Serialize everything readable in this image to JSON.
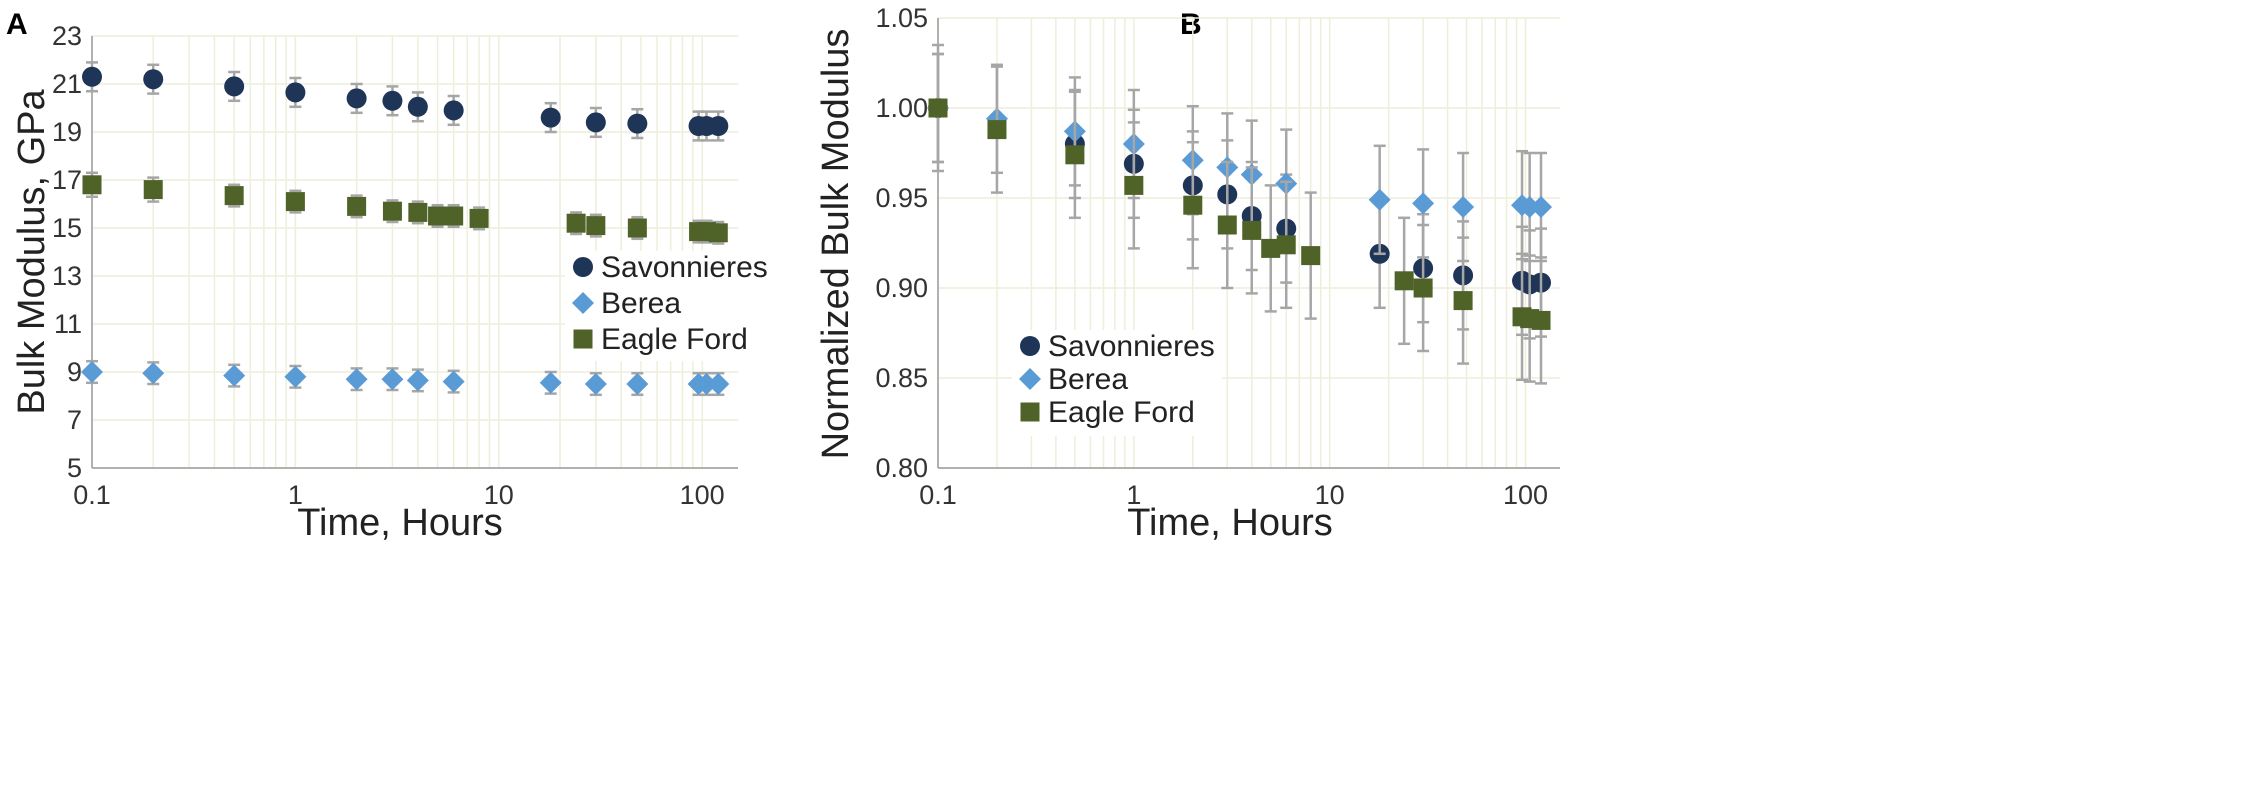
{
  "colors": {
    "savonnieres": "#1f3557",
    "berea": "#5b9bd5",
    "eagle_ford": "#4f6228",
    "error_bar": "#a6a6a6",
    "grid": "#eeeedb",
    "axis": "#9a9a9a"
  },
  "chart_data": [
    {
      "panel": "A",
      "type": "scatter",
      "xscale": "log",
      "xlim": [
        0.1,
        150
      ],
      "ylim": [
        5,
        23
      ],
      "xticks": [
        0.1,
        1,
        10,
        100
      ],
      "xtick_labels": [
        "0.1",
        "1",
        "10",
        "100"
      ],
      "yticks": [
        5,
        7,
        9,
        11,
        13,
        15,
        17,
        19,
        21,
        23
      ],
      "ytick_labels": [
        "5",
        "7",
        "9",
        "11",
        "13",
        "15",
        "17",
        "19",
        "21",
        "23"
      ],
      "xlabel": "Time,  Hours",
      "ylabel": "Bulk Modulus, GPa",
      "grid": true,
      "legend_position": "right-middle",
      "series": [
        {
          "name": "Savonnieres",
          "marker": "circle",
          "color_key": "savonnieres",
          "x": [
            0.1,
            0.2,
            0.5,
            1,
            2,
            3,
            4,
            6,
            18,
            30,
            48,
            96,
            105,
            120
          ],
          "y": [
            21.3,
            21.2,
            20.9,
            20.65,
            20.4,
            20.3,
            20.05,
            19.9,
            19.6,
            19.4,
            19.35,
            19.25,
            19.25,
            19.25
          ],
          "err": [
            0.6,
            0.6,
            0.6,
            0.6,
            0.6,
            0.6,
            0.6,
            0.6,
            0.6,
            0.6,
            0.6,
            0.6,
            0.6,
            0.6
          ]
        },
        {
          "name": "Berea",
          "marker": "diamond",
          "color_key": "berea",
          "x": [
            0.1,
            0.2,
            0.5,
            1,
            2,
            3,
            4,
            6,
            18,
            30,
            48,
            96,
            105,
            120
          ],
          "y": [
            9.0,
            8.95,
            8.85,
            8.8,
            8.7,
            8.7,
            8.65,
            8.6,
            8.55,
            8.5,
            8.5,
            8.5,
            8.5,
            8.5
          ],
          "err": [
            0.45,
            0.45,
            0.45,
            0.45,
            0.45,
            0.45,
            0.45,
            0.45,
            0.45,
            0.45,
            0.45,
            0.45,
            0.45,
            0.45
          ]
        },
        {
          "name": "Eagle Ford",
          "marker": "square",
          "color_key": "eagle_ford",
          "x": [
            0.1,
            0.2,
            0.5,
            1,
            2,
            3,
            4,
            5,
            6,
            8,
            24,
            30,
            48,
            96,
            105,
            120
          ],
          "y": [
            16.8,
            16.6,
            16.35,
            16.1,
            15.9,
            15.7,
            15.65,
            15.5,
            15.5,
            15.4,
            15.2,
            15.1,
            15.0,
            14.85,
            14.85,
            14.8
          ],
          "err": [
            0.5,
            0.5,
            0.45,
            0.45,
            0.45,
            0.45,
            0.45,
            0.45,
            0.45,
            0.45,
            0.45,
            0.45,
            0.45,
            0.45,
            0.45,
            0.45
          ]
        }
      ]
    },
    {
      "panel": "B",
      "type": "scatter",
      "xscale": "log",
      "xlim": [
        0.1,
        150
      ],
      "ylim": [
        0.8,
        1.05
      ],
      "xticks": [
        0.1,
        1,
        10,
        100
      ],
      "xtick_labels": [
        "0.1",
        "1",
        "10",
        "100"
      ],
      "yticks": [
        0.8,
        0.85,
        0.9,
        0.95,
        1.0,
        1.05
      ],
      "ytick_labels": [
        "0.80",
        "0.85",
        "0.90",
        "0.95",
        "1.00",
        "1.05"
      ],
      "xlabel": "Time,  Hours",
      "ylabel": "Normalized Bulk Modulus",
      "grid": true,
      "legend_position": "bottom-left",
      "series": [
        {
          "name": "Savonnieres",
          "marker": "circle",
          "color_key": "savonnieres",
          "x": [
            0.1,
            0.5,
            1,
            2,
            3,
            4,
            6,
            18,
            30,
            48,
            96,
            105,
            120
          ],
          "y": [
            1.0,
            0.98,
            0.969,
            0.957,
            0.952,
            0.94,
            0.933,
            0.919,
            0.911,
            0.907,
            0.904,
            0.902,
            0.903
          ],
          "err": [
            0.03,
            0.03,
            0.03,
            0.03,
            0.03,
            0.03,
            0.03,
            0.03,
            0.03,
            0.03,
            0.03,
            0.03,
            0.03
          ]
        },
        {
          "name": "Berea",
          "marker": "diamond",
          "color_key": "berea",
          "x": [
            0.1,
            0.2,
            0.5,
            1,
            2,
            3,
            4,
            6,
            18,
            30,
            48,
            96,
            105,
            120
          ],
          "y": [
            1.0,
            0.994,
            0.987,
            0.98,
            0.971,
            0.967,
            0.963,
            0.958,
            0.949,
            0.947,
            0.945,
            0.946,
            0.945,
            0.945
          ],
          "err": [
            0.03,
            0.03,
            0.03,
            0.03,
            0.03,
            0.03,
            0.03,
            0.03,
            0.03,
            0.03,
            0.03,
            0.03,
            0.03,
            0.03
          ]
        },
        {
          "name": "Eagle Ford",
          "marker": "square",
          "color_key": "eagle_ford",
          "x": [
            0.1,
            0.2,
            0.5,
            1,
            2,
            3,
            4,
            5,
            6,
            8,
            24,
            30,
            48,
            96,
            105,
            120
          ],
          "y": [
            1.0,
            0.988,
            0.974,
            0.957,
            0.946,
            0.935,
            0.932,
            0.922,
            0.924,
            0.918,
            0.904,
            0.9,
            0.893,
            0.884,
            0.883,
            0.882
          ],
          "err": [
            0.035,
            0.035,
            0.035,
            0.035,
            0.035,
            0.035,
            0.035,
            0.035,
            0.035,
            0.035,
            0.035,
            0.035,
            0.035,
            0.035,
            0.035,
            0.035
          ]
        }
      ]
    }
  ]
}
